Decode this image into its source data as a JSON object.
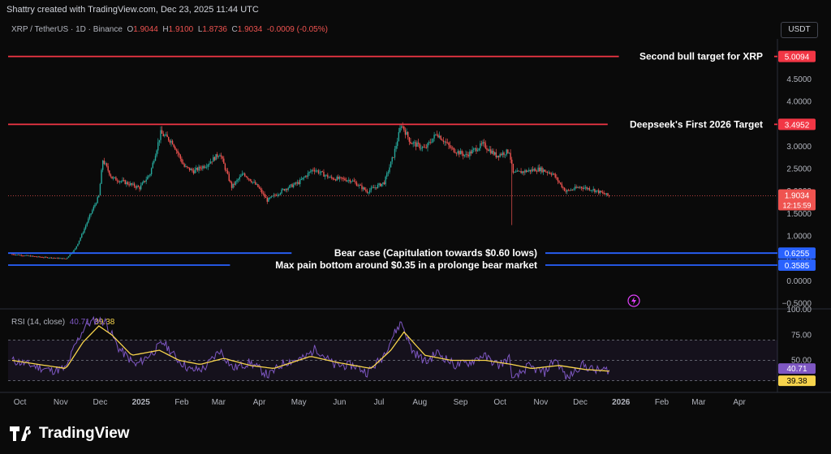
{
  "attribution": "Shattry created with TradingView.com, Dec 23, 2025 11:44 UTC",
  "symbol": {
    "name": "XRP / TetherUS · 1D · Binance",
    "open": "O1.9044",
    "high": "H1.9100",
    "low": "L1.8736",
    "close": "C1.9034",
    "change": "-0.0009 (-0.05%)"
  },
  "currency_button": "USDT",
  "brand": "TradingView",
  "colors": {
    "up": "#26a69a",
    "down": "#ef5350",
    "red_line": "#f23645",
    "blue_line": "#2962ff",
    "rsi": "#7e57c2",
    "rsi_ma": "#f7d44c"
  },
  "chart_data": [
    {
      "type": "candlestick",
      "ylim": [
        -0.6,
        5.4
      ],
      "x_ticks": [
        "Oct",
        "Nov",
        "Dec",
        "2025",
        "Feb",
        "Mar",
        "Apr",
        "May",
        "Jun",
        "Jul",
        "Aug",
        "Sep",
        "Oct",
        "Nov",
        "Dec",
        "2026",
        "Feb",
        "Mar",
        "Apr"
      ],
      "y_ticks": [
        "4.5000",
        "4.0000",
        "3.0000",
        "2.5000",
        "2.0000",
        "1.5000",
        "1.0000",
        "0.5000",
        "0.0000",
        "−0.5000"
      ],
      "last_price": "1.9034",
      "countdown": "12:15:59",
      "price_series": [
        [
          "2024-09-25",
          0.6
        ],
        [
          "2024-10-15",
          0.54
        ],
        [
          "2024-11-05",
          0.5
        ],
        [
          "2024-11-12",
          0.72
        ],
        [
          "2024-11-18",
          1.1
        ],
        [
          "2024-11-23",
          1.45
        ],
        [
          "2024-11-30",
          1.9
        ],
        [
          "2024-12-03",
          2.7
        ],
        [
          "2024-12-10",
          2.3
        ],
        [
          "2024-12-20",
          2.2
        ],
        [
          "2024-12-31",
          2.08
        ],
        [
          "2025-01-08",
          2.4
        ],
        [
          "2025-01-16",
          3.3
        ],
        [
          "2025-01-25",
          3.1
        ],
        [
          "2025-02-03",
          2.55
        ],
        [
          "2025-02-10",
          2.45
        ],
        [
          "2025-02-20",
          2.6
        ],
        [
          "2025-03-02",
          2.85
        ],
        [
          "2025-03-11",
          2.1
        ],
        [
          "2025-03-20",
          2.4
        ],
        [
          "2025-03-31",
          2.1
        ],
        [
          "2025-04-07",
          1.8
        ],
        [
          "2025-04-20",
          2.05
        ],
        [
          "2025-05-01",
          2.2
        ],
        [
          "2025-05-12",
          2.5
        ],
        [
          "2025-05-25",
          2.3
        ],
        [
          "2025-06-10",
          2.25
        ],
        [
          "2025-06-22",
          2.0
        ],
        [
          "2025-07-05",
          2.2
        ],
        [
          "2025-07-12",
          2.8
        ],
        [
          "2025-07-18",
          3.5
        ],
        [
          "2025-07-25",
          3.1
        ],
        [
          "2025-08-05",
          2.95
        ],
        [
          "2025-08-14",
          3.3
        ],
        [
          "2025-08-25",
          2.95
        ],
        [
          "2025-09-05",
          2.8
        ],
        [
          "2025-09-18",
          3.05
        ],
        [
          "2025-09-28",
          2.8
        ],
        [
          "2025-10-08",
          2.9
        ],
        [
          "2025-10-11",
          2.4
        ],
        [
          "2025-10-20",
          2.45
        ],
        [
          "2025-10-31",
          2.5
        ],
        [
          "2025-11-10",
          2.4
        ],
        [
          "2025-11-20",
          2.0
        ],
        [
          "2025-12-01",
          2.1
        ],
        [
          "2025-12-10",
          2.05
        ],
        [
          "2025-12-23",
          1.9
        ]
      ],
      "flash_crash_low": [
        "2025-10-10",
        1.25
      ],
      "annotations": [
        {
          "label": "Second bull target for XRP",
          "value": 5.0094,
          "price_tag": "5.0094",
          "color": "red"
        },
        {
          "label": "Deepseek's First 2026 Target",
          "value": 3.4952,
          "price_tag": "3.4952",
          "color": "red"
        },
        {
          "label": "Bear case (Capitulation towards $0.60 lows)",
          "value": 0.6255,
          "price_tag": "0.6255",
          "color": "blue"
        },
        {
          "label": "Max pain bottom around $0.35 in a prolonge bear market",
          "value": 0.3585,
          "price_tag": "0.3585",
          "color": "blue"
        }
      ]
    },
    {
      "type": "line",
      "title": "RSI (14, close)",
      "rsi_value": "40.71",
      "ma_value": "39.38",
      "ylim": [
        20,
        100
      ],
      "y_ticks": [
        "100.00",
        "75.00",
        "50.00"
      ],
      "band_upper": 70,
      "band_mid": 50,
      "band_lower": 30,
      "rsi_series": [
        [
          "2024-09-25",
          50
        ],
        [
          "2024-10-10",
          45
        ],
        [
          "2024-10-25",
          40
        ],
        [
          "2024-11-05",
          42
        ],
        [
          "2024-11-12",
          65
        ],
        [
          "2024-11-20",
          85
        ],
        [
          "2024-11-28",
          90
        ],
        [
          "2024-12-05",
          88
        ],
        [
          "2024-12-15",
          62
        ],
        [
          "2024-12-28",
          45
        ],
        [
          "2025-01-10",
          58
        ],
        [
          "2025-01-18",
          68
        ],
        [
          "2025-01-28",
          52
        ],
        [
          "2025-02-08",
          40
        ],
        [
          "2025-02-18",
          42
        ],
        [
          "2025-03-02",
          60
        ],
        [
          "2025-03-12",
          42
        ],
        [
          "2025-03-25",
          48
        ],
        [
          "2025-04-08",
          35
        ],
        [
          "2025-04-20",
          48
        ],
        [
          "2025-05-05",
          52
        ],
        [
          "2025-05-14",
          62
        ],
        [
          "2025-05-28",
          45
        ],
        [
          "2025-06-12",
          45
        ],
        [
          "2025-06-22",
          38
        ],
        [
          "2025-07-03",
          52
        ],
        [
          "2025-07-12",
          75
        ],
        [
          "2025-07-18",
          88
        ],
        [
          "2025-07-26",
          60
        ],
        [
          "2025-08-06",
          48
        ],
        [
          "2025-08-14",
          58
        ],
        [
          "2025-08-28",
          45
        ],
        [
          "2025-09-08",
          48
        ],
        [
          "2025-09-18",
          55
        ],
        [
          "2025-09-30",
          45
        ],
        [
          "2025-10-08",
          52
        ],
        [
          "2025-10-11",
          30
        ],
        [
          "2025-10-22",
          44
        ],
        [
          "2025-11-04",
          38
        ],
        [
          "2025-11-12",
          52
        ],
        [
          "2025-11-21",
          32
        ],
        [
          "2025-12-02",
          46
        ],
        [
          "2025-12-12",
          40
        ],
        [
          "2025-12-23",
          40.71
        ]
      ],
      "ma_series": [
        [
          "2024-09-25",
          50
        ],
        [
          "2024-10-15",
          46
        ],
        [
          "2024-11-05",
          42
        ],
        [
          "2024-11-18",
          68
        ],
        [
          "2024-11-30",
          84
        ],
        [
          "2024-12-10",
          75
        ],
        [
          "2024-12-25",
          55
        ],
        [
          "2025-01-15",
          60
        ],
        [
          "2025-01-30",
          50
        ],
        [
          "2025-02-15",
          46
        ],
        [
          "2025-03-05",
          52
        ],
        [
          "2025-03-25",
          45
        ],
        [
          "2025-04-12",
          42
        ],
        [
          "2025-05-10",
          54
        ],
        [
          "2025-05-30",
          48
        ],
        [
          "2025-06-25",
          42
        ],
        [
          "2025-07-10",
          60
        ],
        [
          "2025-07-20",
          78
        ],
        [
          "2025-08-05",
          55
        ],
        [
          "2025-08-25",
          50
        ],
        [
          "2025-09-20",
          50
        ],
        [
          "2025-10-10",
          46
        ],
        [
          "2025-10-25",
          42
        ],
        [
          "2025-11-15",
          45
        ],
        [
          "2025-12-05",
          41
        ],
        [
          "2025-12-23",
          39.38
        ]
      ]
    }
  ]
}
